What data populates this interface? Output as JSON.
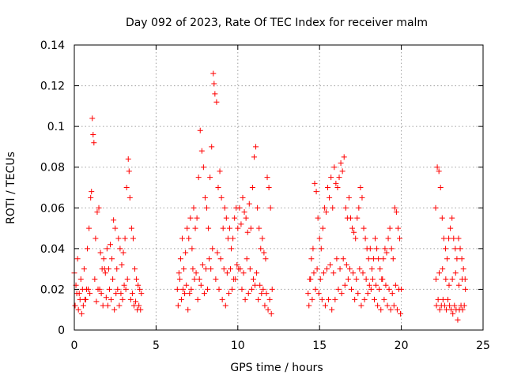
{
  "chart_data": {
    "type": "scatter",
    "title": "Day 092 of 2023, Rate Of TEC Index for receiver malm",
    "xlabel": "GPS time / hours",
    "ylabel": "ROTI / TECUs",
    "xlim": [
      0,
      25
    ],
    "ylim": [
      0,
      0.14
    ],
    "x_ticks": [
      0,
      5,
      10,
      15,
      20,
      25
    ],
    "y_ticks": [
      0,
      0.02,
      0.04,
      0.06,
      0.08,
      0.1,
      0.12,
      0.14
    ],
    "x_tick_labels": [
      "0",
      "5",
      "10",
      "15",
      "20",
      "25"
    ],
    "y_tick_labels": [
      "0",
      "0.02",
      "0.04",
      "0.06",
      "0.08",
      "0.1",
      "0.12",
      "0.14"
    ],
    "grid": true,
    "marker": "plus",
    "marker_color": "#ff0000",
    "series": [
      {
        "x": [
          0.0,
          0.1,
          0.2,
          0.3,
          0.4,
          0.5,
          0.6,
          0.7,
          0.8,
          0.9,
          1.0,
          1.05,
          1.1,
          1.15,
          1.2,
          1.3,
          1.4,
          1.5,
          1.6,
          1.7,
          1.8,
          1.9,
          2.0,
          2.1,
          2.2,
          2.3,
          2.4,
          2.5,
          2.6,
          2.7,
          2.8,
          2.9,
          3.0,
          3.1,
          3.2,
          3.3,
          3.35,
          3.4,
          3.5,
          3.6,
          3.7,
          3.8,
          3.9,
          4.0,
          4.1,
          0.05,
          0.25,
          0.45,
          0.65,
          0.85,
          1.25,
          1.45,
          1.65,
          1.85,
          2.05,
          2.25,
          2.45,
          2.65,
          2.85,
          3.05,
          3.25,
          3.45,
          3.65,
          3.85,
          4.05,
          0.15,
          0.35,
          0.55,
          0.75,
          0.95,
          1.35,
          1.55,
          1.75,
          1.95,
          2.15,
          2.35,
          2.55,
          2.75,
          2.95,
          3.15,
          3.55,
          3.75,
          3.95,
          6.3,
          6.4,
          6.5,
          6.6,
          6.7,
          6.8,
          6.9,
          7.0,
          7.1,
          7.2,
          7.3,
          7.4,
          7.5,
          7.6,
          7.7,
          7.8,
          7.9,
          8.0,
          8.1,
          8.2,
          8.3,
          8.4,
          8.5,
          8.55,
          8.6,
          8.7,
          8.8,
          8.9,
          9.0,
          9.1,
          9.2,
          9.3,
          9.4,
          9.5,
          9.6,
          9.7,
          9.8,
          9.9,
          10.0,
          10.1,
          10.2,
          10.3,
          10.4,
          10.5,
          10.6,
          10.7,
          10.8,
          10.9,
          11.0,
          11.1,
          11.2,
          11.3,
          11.4,
          11.5,
          11.6,
          11.7,
          11.8,
          11.9,
          12.0,
          12.1,
          6.35,
          6.55,
          6.75,
          6.95,
          7.15,
          7.35,
          7.55,
          7.75,
          7.95,
          8.15,
          8.35,
          8.65,
          8.85,
          9.05,
          9.25,
          9.45,
          9.65,
          9.85,
          10.05,
          10.25,
          10.45,
          10.65,
          10.85,
          11.05,
          11.25,
          11.45,
          11.65,
          11.85,
          12.05,
          6.45,
          6.65,
          6.85,
          7.05,
          7.25,
          7.45,
          7.65,
          7.85,
          8.05,
          8.25,
          8.45,
          8.75,
          8.95,
          9.15,
          9.35,
          9.55,
          9.75,
          9.95,
          10.15,
          10.35,
          10.55,
          10.75,
          10.95,
          11.15,
          11.35,
          11.55,
          11.75,
          11.95,
          14.3,
          14.4,
          14.5,
          14.6,
          14.7,
          14.8,
          14.9,
          15.0,
          15.1,
          15.2,
          15.3,
          15.4,
          15.5,
          15.6,
          15.7,
          15.8,
          15.9,
          16.0,
          16.1,
          16.2,
          16.3,
          16.4,
          16.5,
          16.6,
          16.7,
          16.8,
          16.9,
          17.0,
          17.1,
          17.2,
          17.3,
          17.4,
          17.5,
          17.6,
          17.7,
          17.8,
          17.9,
          18.0,
          18.1,
          18.2,
          18.3,
          18.4,
          18.5,
          18.6,
          18.7,
          18.8,
          18.9,
          19.0,
          19.1,
          19.2,
          19.3,
          19.4,
          19.5,
          19.6,
          19.7,
          19.8,
          19.9,
          20.0,
          14.35,
          14.55,
          14.75,
          14.95,
          15.15,
          15.35,
          15.55,
          15.75,
          15.95,
          16.15,
          16.35,
          16.55,
          16.75,
          16.95,
          17.15,
          17.35,
          17.55,
          17.75,
          17.95,
          18.15,
          18.35,
          18.55,
          18.75,
          18.95,
          19.15,
          19.35,
          19.55,
          19.75,
          19.95,
          14.45,
          14.65,
          14.85,
          15.05,
          15.25,
          15.45,
          15.65,
          15.85,
          16.05,
          16.25,
          16.45,
          16.65,
          16.85,
          17.05,
          17.25,
          17.45,
          17.65,
          17.85,
          18.05,
          18.25,
          18.45,
          18.65,
          18.85,
          19.05,
          19.25,
          19.45,
          19.65,
          19.85,
          22.1,
          22.2,
          22.3,
          22.4,
          22.5,
          22.6,
          22.7,
          22.8,
          22.9,
          23.0,
          23.1,
          23.2,
          23.3,
          23.4,
          23.5,
          23.6,
          23.7,
          23.8,
          23.9,
          22.15,
          22.25,
          22.35,
          22.45,
          22.55,
          22.65,
          22.75,
          22.85,
          22.95,
          23.05,
          23.15,
          23.25,
          23.35,
          23.45,
          23.55,
          23.65,
          23.75,
          23.85,
          22.12,
          22.32,
          22.52,
          22.72,
          22.92,
          23.12,
          23.32,
          23.52,
          23.72,
          23.92
        ],
        "y": [
          0.028,
          0.022,
          0.035,
          0.018,
          0.025,
          0.02,
          0.03,
          0.015,
          0.04,
          0.05,
          0.065,
          0.068,
          0.104,
          0.096,
          0.092,
          0.045,
          0.058,
          0.06,
          0.038,
          0.03,
          0.035,
          0.028,
          0.04,
          0.03,
          0.042,
          0.035,
          0.054,
          0.05,
          0.03,
          0.045,
          0.04,
          0.032,
          0.038,
          0.045,
          0.07,
          0.084,
          0.078,
          0.065,
          0.05,
          0.045,
          0.03,
          0.025,
          0.022,
          0.02,
          0.018,
          0.012,
          0.01,
          0.008,
          0.015,
          0.02,
          0.025,
          0.02,
          0.018,
          0.03,
          0.012,
          0.015,
          0.01,
          0.02,
          0.018,
          0.022,
          0.025,
          0.015,
          0.012,
          0.01,
          0.01,
          0.018,
          0.015,
          0.012,
          0.02,
          0.018,
          0.014,
          0.02,
          0.012,
          0.016,
          0.02,
          0.025,
          0.018,
          0.012,
          0.015,
          0.02,
          0.018,
          0.014,
          0.012,
          0.02,
          0.028,
          0.035,
          0.045,
          0.03,
          0.038,
          0.05,
          0.045,
          0.055,
          0.04,
          0.06,
          0.05,
          0.055,
          0.075,
          0.098,
          0.088,
          0.08,
          0.065,
          0.06,
          0.05,
          0.075,
          0.09,
          0.126,
          0.121,
          0.116,
          0.112,
          0.07,
          0.078,
          0.065,
          0.05,
          0.06,
          0.055,
          0.045,
          0.05,
          0.04,
          0.045,
          0.055,
          0.06,
          0.05,
          0.06,
          0.052,
          0.065,
          0.058,
          0.055,
          0.048,
          0.062,
          0.05,
          0.07,
          0.085,
          0.09,
          0.06,
          0.05,
          0.04,
          0.045,
          0.038,
          0.035,
          0.075,
          0.07,
          0.06,
          0.02,
          0.012,
          0.015,
          0.018,
          0.01,
          0.02,
          0.025,
          0.015,
          0.022,
          0.018,
          0.02,
          0.03,
          0.025,
          0.02,
          0.015,
          0.012,
          0.018,
          0.02,
          0.025,
          0.03,
          0.02,
          0.015,
          0.018,
          0.02,
          0.022,
          0.015,
          0.018,
          0.012,
          0.01,
          0.008,
          0.025,
          0.02,
          0.022,
          0.018,
          0.03,
          0.028,
          0.025,
          0.032,
          0.03,
          0.035,
          0.04,
          0.038,
          0.035,
          0.03,
          0.028,
          0.03,
          0.025,
          0.032,
          0.03,
          0.028,
          0.035,
          0.03,
          0.025,
          0.028,
          0.022,
          0.02,
          0.018,
          0.015,
          0.018,
          0.025,
          0.035,
          0.04,
          0.072,
          0.068,
          0.055,
          0.045,
          0.04,
          0.05,
          0.06,
          0.058,
          0.07,
          0.065,
          0.075,
          0.06,
          0.08,
          0.072,
          0.07,
          0.075,
          0.082,
          0.078,
          0.085,
          0.06,
          0.055,
          0.065,
          0.055,
          0.05,
          0.048,
          0.045,
          0.055,
          0.06,
          0.07,
          0.065,
          0.05,
          0.045,
          0.04,
          0.035,
          0.04,
          0.03,
          0.035,
          0.045,
          0.04,
          0.035,
          0.03,
          0.025,
          0.035,
          0.04,
          0.038,
          0.045,
          0.05,
          0.04,
          0.035,
          0.06,
          0.058,
          0.05,
          0.045,
          0.02,
          0.012,
          0.015,
          0.02,
          0.018,
          0.015,
          0.012,
          0.015,
          0.01,
          0.015,
          0.02,
          0.018,
          0.022,
          0.025,
          0.02,
          0.015,
          0.018,
          0.012,
          0.015,
          0.018,
          0.02,
          0.015,
          0.012,
          0.01,
          0.015,
          0.012,
          0.01,
          0.012,
          0.01,
          0.008,
          0.025,
          0.028,
          0.03,
          0.025,
          0.028,
          0.03,
          0.032,
          0.028,
          0.035,
          0.03,
          0.035,
          0.032,
          0.03,
          0.028,
          0.025,
          0.03,
          0.028,
          0.025,
          0.022,
          0.025,
          0.022,
          0.02,
          0.025,
          0.022,
          0.02,
          0.018,
          0.022,
          0.02,
          0.06,
          0.08,
          0.078,
          0.07,
          0.055,
          0.045,
          0.04,
          0.035,
          0.045,
          0.05,
          0.055,
          0.045,
          0.04,
          0.035,
          0.045,
          0.04,
          0.035,
          0.03,
          0.025,
          0.012,
          0.015,
          0.01,
          0.012,
          0.015,
          0.012,
          0.01,
          0.015,
          0.012,
          0.01,
          0.008,
          0.012,
          0.01,
          0.005,
          0.01,
          0.012,
          0.01,
          0.012,
          0.025,
          0.028,
          0.03,
          0.025,
          0.022,
          0.025,
          0.028,
          0.022,
          0.025,
          0.02
        ]
      }
    ]
  }
}
